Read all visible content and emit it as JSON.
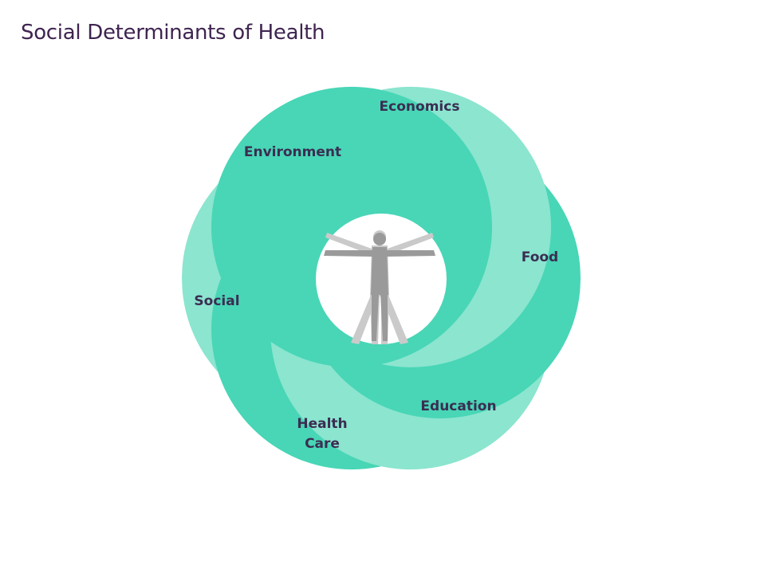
{
  "title": "Social Determinants of Health",
  "colors": {
    "segment_dark": "#48d6b6",
    "segment_light": "#8be5cf",
    "label_text": "#3b2d52",
    "title_text": "#3f2450",
    "figure_dark": "#9a9a9a",
    "figure_light": "#cacaca"
  },
  "figure_icon": "human-figure-icon",
  "segments": [
    {
      "id": "economics",
      "label": "Economics",
      "tone": "dark"
    },
    {
      "id": "food",
      "label": "Food",
      "tone": "light"
    },
    {
      "id": "education",
      "label": "Education",
      "tone": "dark"
    },
    {
      "id": "health-care",
      "label": "Health Care",
      "lines": [
        "Health",
        "Care"
      ],
      "tone": "light"
    },
    {
      "id": "social",
      "label": "Social",
      "tone": "dark"
    },
    {
      "id": "environment",
      "label": "Environment",
      "tone": "light"
    }
  ]
}
